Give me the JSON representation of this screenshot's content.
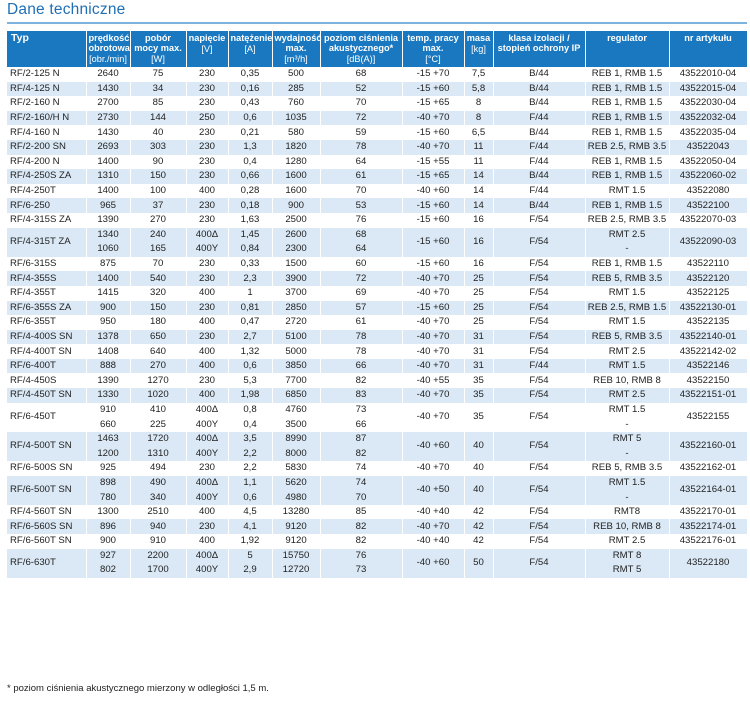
{
  "title": "Dane techniczne",
  "headers": [
    {
      "label": "Typ",
      "unit": ""
    },
    {
      "label": "prędkość obrotowa",
      "unit": "[obr./min]"
    },
    {
      "label": "pobór mocy max.",
      "unit": "[W]"
    },
    {
      "label": "napięcie",
      "unit": "[V]"
    },
    {
      "label": "natężenie",
      "unit": "[A]"
    },
    {
      "label": "wydajność max.",
      "unit": "[m³/h]"
    },
    {
      "label": "poziom ciśnienia akustycznego*",
      "unit": "[dB(A)]"
    },
    {
      "label": "temp. pracy max.",
      "unit": "[°C]"
    },
    {
      "label": "masa",
      "unit": "[kg]"
    },
    {
      "label": "klasa izolacji / stopień ochrony IP",
      "unit": ""
    },
    {
      "label": "regulator",
      "unit": ""
    },
    {
      "label": "nr artykułu",
      "unit": ""
    }
  ],
  "rows": [
    {
      "typ": "RF/2-125 N",
      "sub": [
        [
          "2640",
          "75",
          "230",
          "0,35",
          "500",
          "68"
        ]
      ],
      "temp": "-15 +70",
      "masa": "7,5",
      "ip": "B/44",
      "reg": [
        "REB 1, RMB 1.5"
      ],
      "nr": "43522010-04"
    },
    {
      "typ": "RF/4-125 N",
      "sub": [
        [
          "1430",
          "34",
          "230",
          "0,16",
          "285",
          "52"
        ]
      ],
      "temp": "-15 +60",
      "masa": "5,8",
      "ip": "B/44",
      "reg": [
        "REB 1, RMB 1.5"
      ],
      "nr": "43522015-04"
    },
    {
      "typ": "RF/2-160 N",
      "sub": [
        [
          "2700",
          "85",
          "230",
          "0,43",
          "760",
          "70"
        ]
      ],
      "temp": "-15 +65",
      "masa": "8",
      "ip": "B/44",
      "reg": [
        "REB 1, RMB 1.5"
      ],
      "nr": "43522030-04"
    },
    {
      "typ": "RF/2-160/H N",
      "sub": [
        [
          "2730",
          "144",
          "250",
          "0,6",
          "1035",
          "72"
        ]
      ],
      "temp": "-40 +70",
      "masa": "8",
      "ip": "F/44",
      "reg": [
        "REB 1, RMB 1.5"
      ],
      "nr": "43522032-04"
    },
    {
      "typ": "RF/4-160 N",
      "sub": [
        [
          "1430",
          "40",
          "230",
          "0,21",
          "580",
          "59"
        ]
      ],
      "temp": "-15 +60",
      "masa": "6,5",
      "ip": "B/44",
      "reg": [
        "REB 1, RMB 1.5"
      ],
      "nr": "43522035-04"
    },
    {
      "typ": "RF/2-200 SN",
      "sub": [
        [
          "2693",
          "303",
          "230",
          "1,3",
          "1820",
          "78"
        ]
      ],
      "temp": "-40 +70",
      "masa": "11",
      "ip": "F/44",
      "reg": [
        "REB 2.5, RMB 3.5"
      ],
      "nr": "43522043"
    },
    {
      "typ": "RF/4-200 N",
      "sub": [
        [
          "1400",
          "90",
          "230",
          "0,4",
          "1280",
          "64"
        ]
      ],
      "temp": "-15 +55",
      "masa": "11",
      "ip": "F/44",
      "reg": [
        "REB 1, RMB 1.5"
      ],
      "nr": "43522050-04"
    },
    {
      "typ": "RF/4-250S ZA",
      "sub": [
        [
          "1310",
          "150",
          "230",
          "0,66",
          "1600",
          "61"
        ]
      ],
      "temp": "-15 +65",
      "masa": "14",
      "ip": "B/44",
      "reg": [
        "REB 1, RMB 1.5"
      ],
      "nr": "43522060-02"
    },
    {
      "typ": "RF/4-250T",
      "sub": [
        [
          "1400",
          "100",
          "400",
          "0,28",
          "1600",
          "70"
        ]
      ],
      "temp": "-40 +60",
      "masa": "14",
      "ip": "F/44",
      "reg": [
        "RMT 1.5"
      ],
      "nr": "43522080"
    },
    {
      "typ": "RF/6-250",
      "sub": [
        [
          "965",
          "37",
          "230",
          "0,18",
          "900",
          "53"
        ]
      ],
      "temp": "-15 +60",
      "masa": "14",
      "ip": "B/44",
      "reg": [
        "REB 1, RMB 1.5"
      ],
      "nr": "43522100"
    },
    {
      "typ": "RF/4-315S ZA",
      "sub": [
        [
          "1390",
          "270",
          "230",
          "1,63",
          "2500",
          "76"
        ]
      ],
      "temp": "-15 +60",
      "masa": "16",
      "ip": "F/54",
      "reg": [
        "REB 2.5, RMB 3.5"
      ],
      "nr": "43522070-03"
    },
    {
      "typ": "RF/4-315T ZA",
      "sub": [
        [
          "1340",
          "240",
          "400Δ",
          "1,45",
          "2600",
          "68"
        ],
        [
          "1060",
          "165",
          "400Y",
          "0,84",
          "2300",
          "64"
        ]
      ],
      "temp": "-15 +60",
      "masa": "16",
      "ip": "F/54",
      "reg": [
        "RMT 2.5",
        "-"
      ],
      "nr": "43522090-03"
    },
    {
      "typ": "RF/6-315S",
      "sub": [
        [
          "875",
          "70",
          "230",
          "0,33",
          "1500",
          "60"
        ]
      ],
      "temp": "-15 +60",
      "masa": "16",
      "ip": "F/54",
      "reg": [
        "REB 1, RMB 1.5"
      ],
      "nr": "43522110"
    },
    {
      "typ": "RF/4-355S",
      "sub": [
        [
          "1400",
          "540",
          "230",
          "2,3",
          "3900",
          "72"
        ]
      ],
      "temp": "-40 +70",
      "masa": "25",
      "ip": "F/54",
      "reg": [
        "REB 5, RMB 3.5"
      ],
      "nr": "43522120"
    },
    {
      "typ": "RF/4-355T",
      "sub": [
        [
          "1415",
          "320",
          "400",
          "1",
          "3700",
          "69"
        ]
      ],
      "temp": "-40 +70",
      "masa": "25",
      "ip": "F/54",
      "reg": [
        "RMT 1.5"
      ],
      "nr": "43522125"
    },
    {
      "typ": "RF/6-355S ZA",
      "sub": [
        [
          "900",
          "150",
          "230",
          "0,81",
          "2850",
          "57"
        ]
      ],
      "temp": "-15 +60",
      "masa": "25",
      "ip": "F/54",
      "reg": [
        "REB 2.5, RMB 1.5"
      ],
      "nr": "43522130-01"
    },
    {
      "typ": "RF/6-355T",
      "sub": [
        [
          "950",
          "180",
          "400",
          "0,47",
          "2720",
          "61"
        ]
      ],
      "temp": "-40 +70",
      "masa": "25",
      "ip": "F/54",
      "reg": [
        "RMT 1.5"
      ],
      "nr": "43522135"
    },
    {
      "typ": "RF/4-400S SN",
      "sub": [
        [
          "1378",
          "650",
          "230",
          "2,7",
          "5100",
          "78"
        ]
      ],
      "temp": "-40 +70",
      "masa": "31",
      "ip": "F/54",
      "reg": [
        "REB 5, RMB 3.5"
      ],
      "nr": "43522140-01"
    },
    {
      "typ": "RF/4-400T SN",
      "sub": [
        [
          "1408",
          "640",
          "400",
          "1,32",
          "5000",
          "78"
        ]
      ],
      "temp": "-40 +70",
      "masa": "31",
      "ip": "F/54",
      "reg": [
        "RMT 2.5"
      ],
      "nr": "43522142-02"
    },
    {
      "typ": "RF/6-400T",
      "sub": [
        [
          "888",
          "270",
          "400",
          "0,6",
          "3850",
          "66"
        ]
      ],
      "temp": "-40 +70",
      "masa": "31",
      "ip": "F/44",
      "reg": [
        "RMT 1.5"
      ],
      "nr": "43522146"
    },
    {
      "typ": "RF/4-450S",
      "sub": [
        [
          "1390",
          "1270",
          "230",
          "5,3",
          "7700",
          "82"
        ]
      ],
      "temp": "-40 +55",
      "masa": "35",
      "ip": "F/54",
      "reg": [
        "REB 10, RMB 8"
      ],
      "nr": "43522150"
    },
    {
      "typ": "RF/4-450T SN",
      "sub": [
        [
          "1330",
          "1020",
          "400",
          "1,98",
          "6850",
          "83"
        ]
      ],
      "temp": "-40 +70",
      "masa": "35",
      "ip": "F/54",
      "reg": [
        "RMT 2.5"
      ],
      "nr": "43522151-01"
    },
    {
      "typ": "RF/6-450T",
      "sub": [
        [
          "910",
          "410",
          "400Δ",
          "0,8",
          "4760",
          "73"
        ],
        [
          "660",
          "225",
          "400Y",
          "0,4",
          "3500",
          "66"
        ]
      ],
      "temp": "-40 +70",
      "masa": "35",
      "ip": "F/54",
      "reg": [
        "RMT 1.5",
        "-"
      ],
      "nr": "43522155"
    },
    {
      "typ": "RF/4-500T SN",
      "sub": [
        [
          "1463",
          "1720",
          "400Δ",
          "3,5",
          "8990",
          "87"
        ],
        [
          "1200",
          "1310",
          "400Y",
          "2,2",
          "8000",
          "82"
        ]
      ],
      "temp": "-40 +60",
      "masa": "40",
      "ip": "F/54",
      "reg": [
        "RMT 5",
        "-"
      ],
      "nr": "43522160-01"
    },
    {
      "typ": "RF/6-500S SN",
      "sub": [
        [
          "925",
          "494",
          "230",
          "2,2",
          "5830",
          "74"
        ]
      ],
      "temp": "-40 +70",
      "masa": "40",
      "ip": "F/54",
      "reg": [
        "REB 5, RMB 3.5"
      ],
      "nr": "43522162-01"
    },
    {
      "typ": "RF/6-500T SN",
      "sub": [
        [
          "898",
          "490",
          "400Δ",
          "1,1",
          "5620",
          "74"
        ],
        [
          "780",
          "340",
          "400Y",
          "0,6",
          "4980",
          "70"
        ]
      ],
      "temp": "-40 +50",
      "masa": "40",
      "ip": "F/54",
      "reg": [
        "RMT 1.5",
        "-"
      ],
      "nr": "43522164-01"
    },
    {
      "typ": "RF/4-560T SN",
      "sub": [
        [
          "1300",
          "2510",
          "400",
          "4,5",
          "13280",
          "85"
        ]
      ],
      "temp": "-40 +40",
      "masa": "42",
      "ip": "F/54",
      "reg": [
        "RMT8"
      ],
      "nr": "43522170-01"
    },
    {
      "typ": "RF/6-560S SN",
      "sub": [
        [
          "896",
          "940",
          "230",
          "4,1",
          "9120",
          "82"
        ]
      ],
      "temp": "-40 +70",
      "masa": "42",
      "ip": "F/54",
      "reg": [
        "REB 10, RMB 8"
      ],
      "nr": "43522174-01"
    },
    {
      "typ": "RF/6-560T SN",
      "sub": [
        [
          "900",
          "910",
          "400",
          "1,92",
          "9120",
          "82"
        ]
      ],
      "temp": "-40 +40",
      "masa": "42",
      "ip": "F/54",
      "reg": [
        "RMT 2.5"
      ],
      "nr": "43522176-01"
    },
    {
      "typ": "RF/6-630T",
      "sub": [
        [
          "927",
          "2200",
          "400Δ",
          "5",
          "15750",
          "76"
        ],
        [
          "802",
          "1700",
          "400Y",
          "2,9",
          "12720",
          "73"
        ]
      ],
      "temp": "-40 +60",
      "masa": "50",
      "ip": "F/54",
      "reg": [
        "RMT 8",
        "RMT 5"
      ],
      "nr": "43522180"
    }
  ],
  "footnote": "* poziom ciśnienia akustycznego mierzony w odległości 1,5 m."
}
